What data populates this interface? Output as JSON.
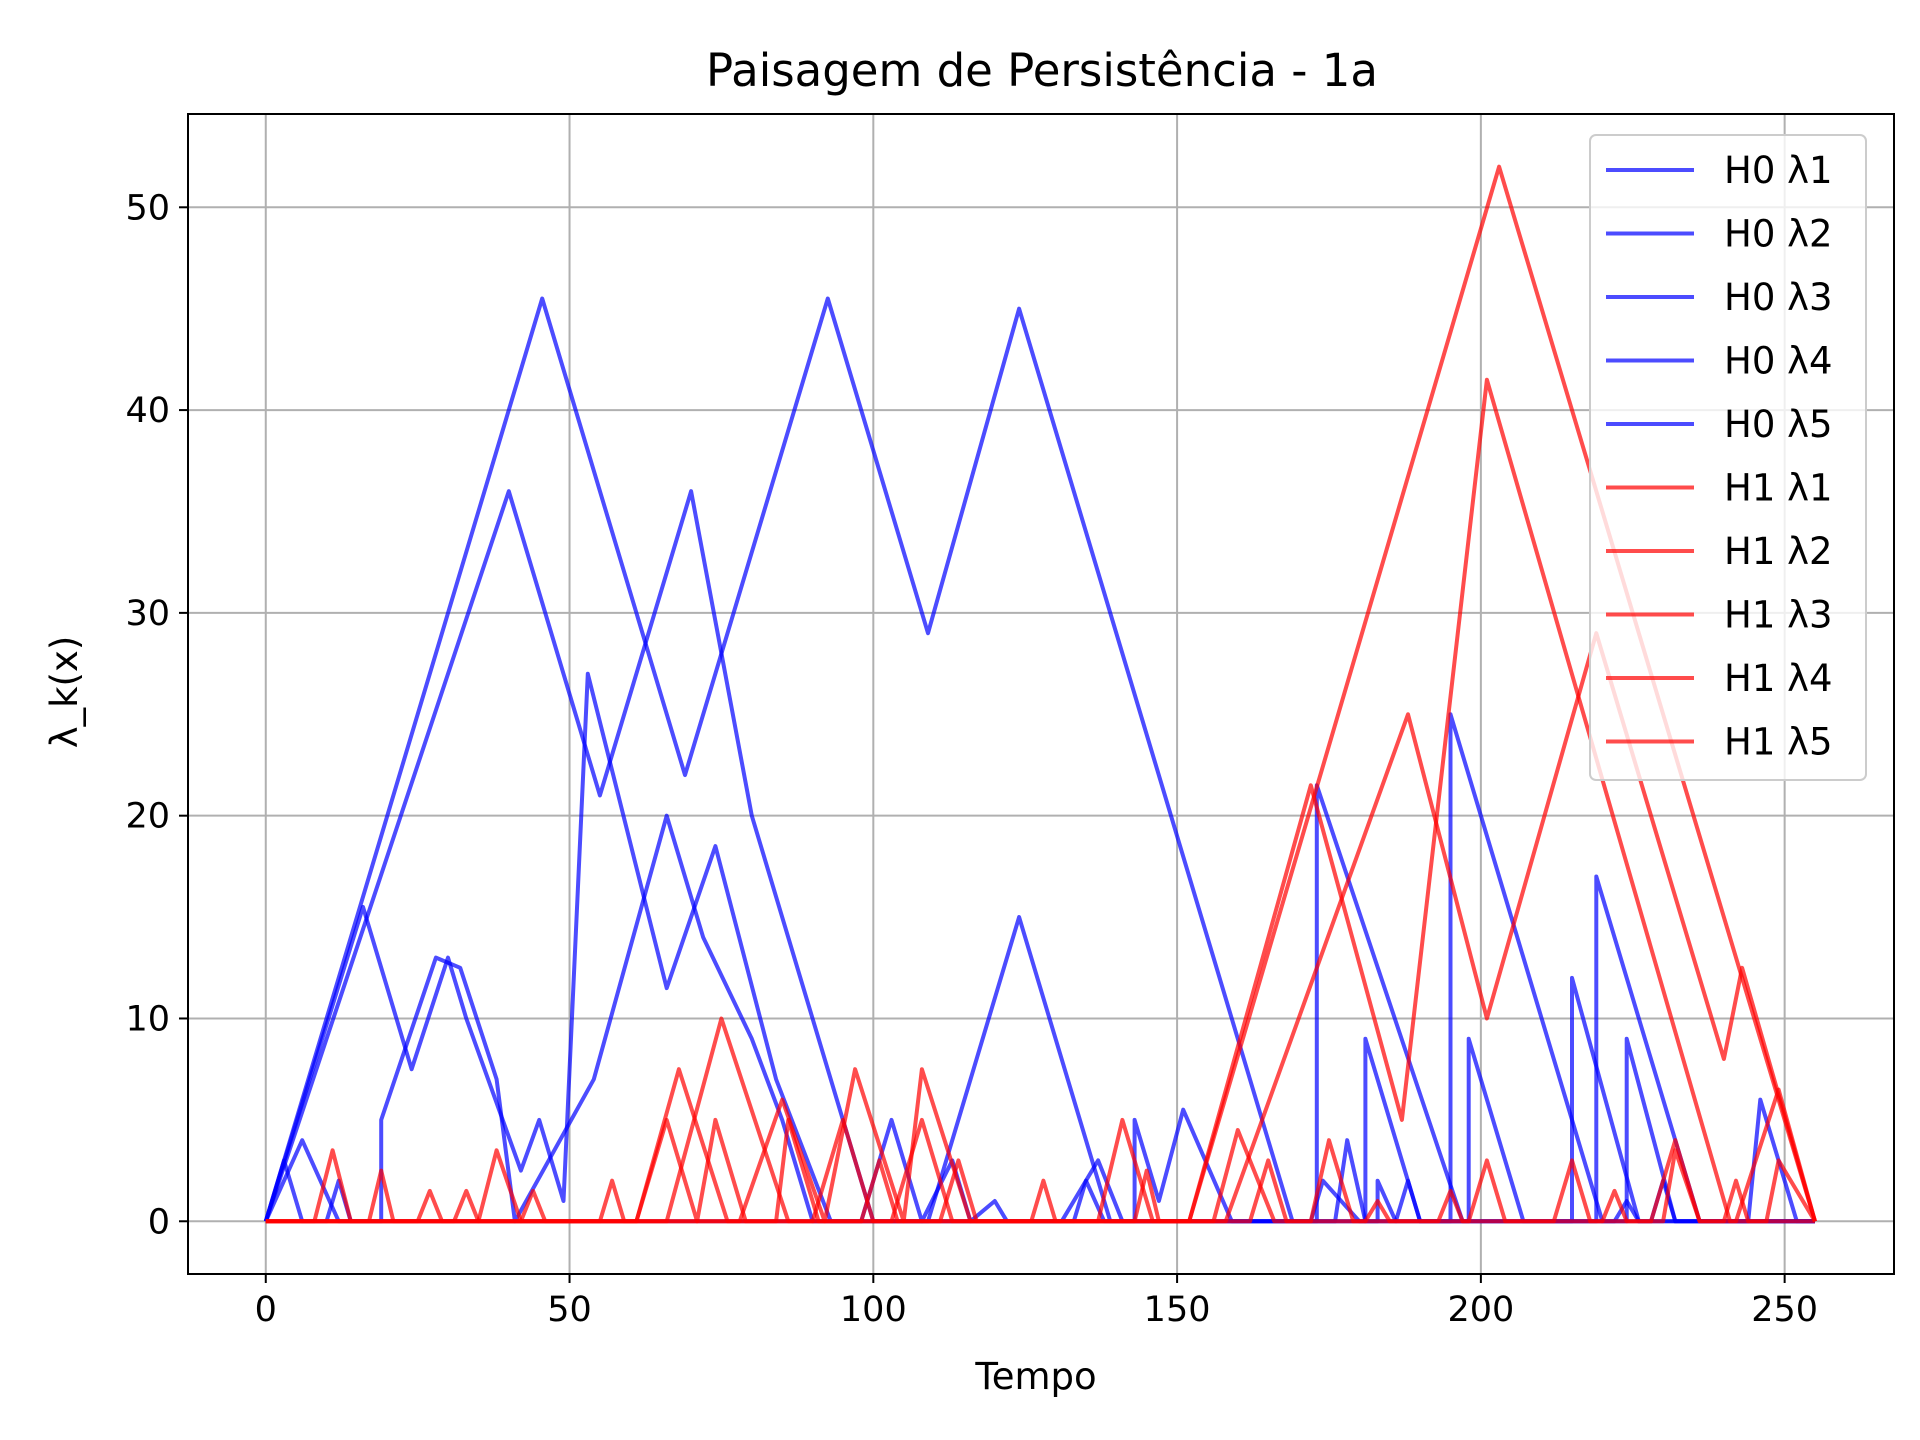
{
  "chart_data": {
    "type": "line",
    "title": "Paisagem de Persistência - 1a",
    "xlabel": "Tempo",
    "ylabel": "λ_k(x)",
    "xlim": [
      -12.8,
      268
    ],
    "ylim": [
      -2.6,
      54.6
    ],
    "xticks": [
      0,
      50,
      100,
      150,
      200,
      250
    ],
    "yticks": [
      0,
      10,
      20,
      30,
      40,
      50
    ],
    "grid": true,
    "legend_position": "top-right",
    "colors": {
      "H0": "#0000ff",
      "H1": "#ff0000"
    },
    "series": [
      {
        "name": "H0 λ1",
        "group": "H0",
        "color": "#0000ff",
        "points": [
          [
            0,
            0
          ],
          [
            30.5,
            30.5
          ],
          [
            45.5,
            45.5
          ],
          [
            69,
            22
          ],
          [
            92.5,
            45.5
          ],
          [
            109,
            29
          ],
          [
            124,
            45
          ],
          [
            169,
            0
          ],
          [
            195,
            0
          ],
          [
            195,
            25
          ],
          [
            220,
            0
          ],
          [
            255,
            0
          ]
        ]
      },
      {
        "name": "H0 λ2",
        "group": "H0",
        "color": "#0000ff",
        "points": [
          [
            0,
            0
          ],
          [
            40,
            36
          ],
          [
            55,
            21
          ],
          [
            70,
            36
          ],
          [
            80,
            20
          ],
          [
            100,
            0
          ],
          [
            109,
            0
          ],
          [
            124,
            15
          ],
          [
            139,
            0
          ],
          [
            173,
            0
          ],
          [
            173,
            21.5
          ],
          [
            197,
            0
          ],
          [
            219,
            0
          ],
          [
            219,
            17
          ],
          [
            236,
            0
          ],
          [
            255,
            0
          ]
        ]
      },
      {
        "name": "H0 λ3",
        "group": "H0",
        "color": "#0000ff",
        "points": [
          [
            0,
            0
          ],
          [
            16,
            15.5
          ],
          [
            24,
            7.5
          ],
          [
            30,
            13
          ],
          [
            33,
            10
          ],
          [
            42,
            2.5
          ],
          [
            45,
            5
          ],
          [
            49,
            1
          ],
          [
            53,
            27
          ],
          [
            66,
            11.5
          ],
          [
            74,
            18.5
          ],
          [
            84,
            7
          ],
          [
            93,
            0
          ],
          [
            143,
            0
          ],
          [
            143,
            5
          ],
          [
            147,
            1
          ],
          [
            151,
            5.5
          ],
          [
            159,
            0
          ],
          [
            181,
            0
          ],
          [
            181,
            9
          ],
          [
            190,
            0
          ],
          [
            198,
            0
          ],
          [
            198,
            9
          ],
          [
            207,
            0
          ],
          [
            215,
            0
          ],
          [
            215,
            12
          ],
          [
            226,
            0
          ],
          [
            255,
            0
          ]
        ]
      },
      {
        "name": "H0 λ4",
        "group": "H0",
        "color": "#0000ff",
        "points": [
          [
            0,
            0
          ],
          [
            6,
            4
          ],
          [
            12,
            0
          ],
          [
            19,
            0
          ],
          [
            19,
            5
          ],
          [
            28,
            13
          ],
          [
            32,
            12.5
          ],
          [
            38,
            7
          ],
          [
            41,
            0
          ],
          [
            54,
            7
          ],
          [
            66,
            20
          ],
          [
            72,
            14
          ],
          [
            80,
            9
          ],
          [
            85,
            5
          ],
          [
            90,
            0
          ],
          [
            131,
            0
          ],
          [
            137,
            3
          ],
          [
            141,
            0
          ],
          [
            172,
            0
          ],
          [
            174,
            2
          ],
          [
            180,
            0
          ],
          [
            183,
            0
          ],
          [
            183,
            2
          ],
          [
            186,
            0
          ],
          [
            224,
            0
          ],
          [
            224,
            9
          ],
          [
            232,
            0
          ],
          [
            255,
            0
          ]
        ]
      },
      {
        "name": "H0 λ5",
        "group": "H0",
        "color": "#0000ff",
        "points": [
          [
            0,
            0
          ],
          [
            3,
            3
          ],
          [
            6,
            0
          ],
          [
            10,
            0
          ],
          [
            12,
            2
          ],
          [
            14,
            0
          ],
          [
            98,
            0
          ],
          [
            103,
            5
          ],
          [
            108,
            0
          ],
          [
            113,
            3
          ],
          [
            116,
            0
          ],
          [
            120,
            1
          ],
          [
            122,
            0
          ],
          [
            133,
            0
          ],
          [
            135,
            2
          ],
          [
            138,
            0
          ],
          [
            176,
            0
          ],
          [
            178,
            4
          ],
          [
            181,
            0
          ],
          [
            186,
            0
          ],
          [
            188,
            2
          ],
          [
            190,
            0
          ],
          [
            222,
            0
          ],
          [
            224,
            1
          ],
          [
            226,
            0
          ],
          [
            228,
            0
          ],
          [
            230,
            2
          ],
          [
            232,
            0
          ],
          [
            244,
            0
          ],
          [
            246,
            6
          ],
          [
            252,
            0
          ],
          [
            255,
            0
          ]
        ]
      },
      {
        "name": "H1 λ1",
        "group": "H1",
        "color": "#ff0000",
        "points": [
          [
            0,
            0
          ],
          [
            152,
            0
          ],
          [
            203,
            52
          ],
          [
            255,
            0
          ]
        ]
      },
      {
        "name": "H1 λ2",
        "group": "H1",
        "color": "#ff0000",
        "points": [
          [
            0,
            0
          ],
          [
            152,
            0
          ],
          [
            172,
            21.5
          ],
          [
            187,
            5
          ],
          [
            201,
            41.5
          ],
          [
            241,
            0
          ],
          [
            255,
            0
          ]
        ]
      },
      {
        "name": "H1 λ3",
        "group": "H1",
        "color": "#ff0000",
        "points": [
          [
            0,
            0
          ],
          [
            66,
            0
          ],
          [
            75,
            10
          ],
          [
            86,
            0
          ],
          [
            90,
            0
          ],
          [
            95,
            5
          ],
          [
            100,
            0
          ],
          [
            103,
            0
          ],
          [
            108,
            5
          ],
          [
            113,
            0
          ],
          [
            158,
            0
          ],
          [
            188,
            25
          ],
          [
            201,
            10
          ],
          [
            219,
            29
          ],
          [
            240,
            8
          ],
          [
            243,
            12.5
          ],
          [
            255,
            0
          ]
        ]
      },
      {
        "name": "H1 λ4",
        "group": "H1",
        "color": "#ff0000",
        "points": [
          [
            0,
            0
          ],
          [
            8,
            0
          ],
          [
            11,
            3.5
          ],
          [
            14,
            0
          ],
          [
            35,
            0
          ],
          [
            38,
            3.5
          ],
          [
            42,
            0
          ],
          [
            61,
            0
          ],
          [
            68,
            7.5
          ],
          [
            76,
            0
          ],
          [
            78,
            0
          ],
          [
            85,
            6
          ],
          [
            92,
            0
          ],
          [
            97,
            7.5
          ],
          [
            105,
            0
          ],
          [
            108,
            7.5
          ],
          [
            116,
            0
          ],
          [
            137,
            0
          ],
          [
            141,
            5
          ],
          [
            146,
            0
          ],
          [
            156,
            0
          ],
          [
            160,
            4.5
          ],
          [
            166,
            0
          ],
          [
            172,
            0
          ],
          [
            175,
            4
          ],
          [
            179,
            0
          ],
          [
            198,
            0
          ],
          [
            201,
            3
          ],
          [
            204,
            0
          ],
          [
            212,
            0
          ],
          [
            215,
            3
          ],
          [
            218,
            0
          ],
          [
            228,
            0
          ],
          [
            232,
            4
          ],
          [
            236,
            0
          ],
          [
            242,
            0
          ],
          [
            249,
            6.5
          ],
          [
            255,
            0
          ]
        ]
      },
      {
        "name": "H1 λ5",
        "group": "H1",
        "color": "#ff0000",
        "points": [
          [
            0,
            0
          ],
          [
            17,
            0
          ],
          [
            19,
            2.5
          ],
          [
            21,
            0
          ],
          [
            25,
            0
          ],
          [
            27,
            1.5
          ],
          [
            29,
            0
          ],
          [
            31,
            0
          ],
          [
            33,
            1.5
          ],
          [
            35,
            0
          ],
          [
            42,
            0
          ],
          [
            44,
            1.5
          ],
          [
            46,
            0
          ],
          [
            55,
            0
          ],
          [
            57,
            2
          ],
          [
            59,
            0
          ],
          [
            61,
            0
          ],
          [
            66,
            5
          ],
          [
            71,
            0
          ],
          [
            74,
            5
          ],
          [
            79,
            0
          ],
          [
            84,
            0
          ],
          [
            86,
            5
          ],
          [
            91,
            0
          ],
          [
            98,
            0
          ],
          [
            101,
            3
          ],
          [
            104,
            0
          ],
          [
            111,
            0
          ],
          [
            114,
            3
          ],
          [
            117,
            0
          ],
          [
            126,
            0
          ],
          [
            128,
            2
          ],
          [
            130,
            0
          ],
          [
            143,
            0
          ],
          [
            145,
            2.5
          ],
          [
            147,
            0
          ],
          [
            162,
            0
          ],
          [
            165,
            3
          ],
          [
            168,
            0
          ],
          [
            181,
            0
          ],
          [
            183,
            1
          ],
          [
            185,
            0
          ],
          [
            193,
            0
          ],
          [
            195,
            1.5
          ],
          [
            197,
            0
          ],
          [
            220,
            0
          ],
          [
            222,
            1.5
          ],
          [
            224,
            0
          ],
          [
            230,
            0
          ],
          [
            232,
            3.5
          ],
          [
            236,
            0
          ],
          [
            240,
            0
          ],
          [
            242,
            2
          ],
          [
            244,
            0
          ],
          [
            247,
            0
          ],
          [
            249,
            3
          ],
          [
            255,
            0
          ]
        ]
      }
    ]
  }
}
